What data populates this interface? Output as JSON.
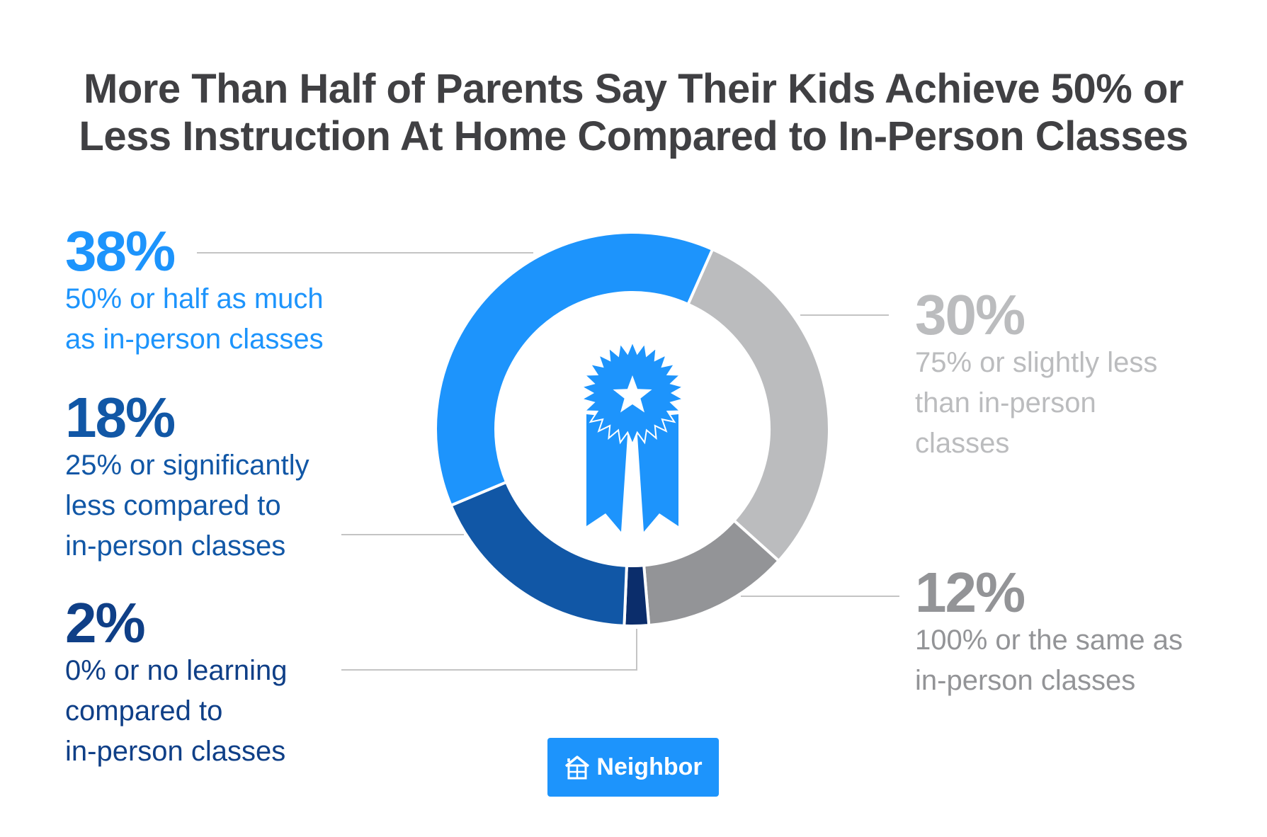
{
  "title": {
    "line1": "More Than Half of Parents Say Their Kids Achieve 50% or",
    "line2": "Less Instruction At Home Compared to In-Person Classes"
  },
  "colors": {
    "title": "#404043",
    "bright_blue": "#1d94fc",
    "dark_blue": "#1157a6",
    "navy": "#0b2d6b",
    "light_gray": "#bbbcbe",
    "mid_gray": "#939497",
    "connector": "#c4c4c4"
  },
  "labels": {
    "l38": {
      "pct": "38%",
      "desc1": "50% or half as much",
      "desc2": "as in-person classes"
    },
    "l18": {
      "pct": "18%",
      "desc1": "25% or significantly",
      "desc2": "less compared to",
      "desc3": "in-person classes"
    },
    "l2": {
      "pct": "2%",
      "desc1": "0% or no learning",
      "desc2": "compared to",
      "desc3": "in-person classes"
    },
    "l30": {
      "pct": "30%",
      "desc1": "75% or slightly less",
      "desc2": "than in-person",
      "desc3": "classes"
    },
    "l12": {
      "pct": "12%",
      "desc1": "100% or the same as",
      "desc2": "in-person classes"
    }
  },
  "center_icon": "award-ribbon-star-icon",
  "brand": {
    "label": "Neighbor",
    "icon": "house-icon"
  },
  "chart_data": {
    "type": "pie",
    "variant": "donut",
    "title": "More Than Half of Parents Say Their Kids Achieve 50% or Less Instruction At Home Compared to In-Person Classes",
    "start_angle_deg": 24,
    "categories": [
      "75% or slightly less than in-person classes",
      "100% or the same as in-person classes",
      "0% or no learning compared to in-person classes",
      "25% or significantly less compared to in-person classes",
      "50% or half as much as in-person classes"
    ],
    "values": [
      30,
      12,
      2,
      18,
      38
    ],
    "colors": [
      "#bbbcbe",
      "#939497",
      "#0b2d6b",
      "#1157a6",
      "#1d94fc"
    ],
    "unit": "%",
    "legend": "none (direct labels with leader lines)"
  }
}
